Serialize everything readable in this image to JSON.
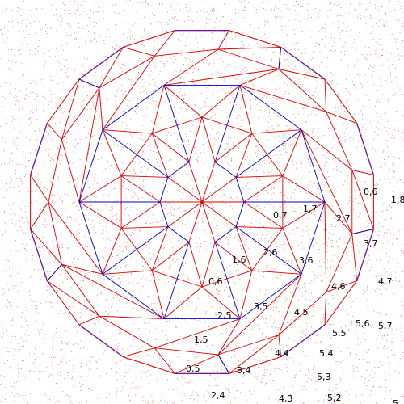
{
  "figure": {
    "background": "#ffffff",
    "noise_color": "#cc0000",
    "colors": {
      "red": "#dd0000",
      "blue": "#0000cc",
      "purple": "#6a1a9a"
    }
  },
  "labels": [
    "0,6",
    "1,8",
    "0,7",
    "1,7",
    "2,7",
    "3,7",
    "4,7",
    "1,6",
    "2,6",
    "3,6",
    "4,6",
    "0,6",
    "3,5",
    "4,5",
    "5,6",
    "5,7",
    "2,5",
    "5,5",
    "1,5",
    "4,4",
    "5,4",
    "0,5",
    "3,4",
    "5,3",
    "2,4",
    "4,3",
    "5,2",
    "5"
  ]
}
